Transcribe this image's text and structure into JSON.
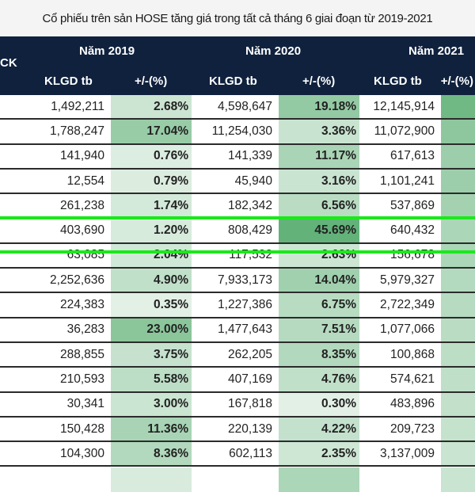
{
  "title": "Cổ phiếu trên sản HOSE tăng giá trong tất cả tháng 6 giai đoạn từ 2019-2021",
  "header": {
    "ck": "CK",
    "years": [
      "Năm 2019",
      "Năm 2020",
      "Năm 2021"
    ],
    "klgd": "KLGD tb",
    "pct": "+/-(%)"
  },
  "colors": {
    "header_bg": "#0f213d",
    "heat_low": "#eef6f0",
    "heat_high": "#5aae72",
    "highlight": "#1be81b"
  },
  "highlighted_row_index": 5,
  "rows": [
    {
      "klgd2019": "1,492,211",
      "pct2019": "2.68%",
      "klgd2020": "4,598,647",
      "pct2020": "19.18%",
      "klgd2021": "12,145,914",
      "level2021": 0.85
    },
    {
      "klgd2019": "1,788,247",
      "pct2019": "17.04%",
      "klgd2020": "11,254,030",
      "pct2020": "3.36%",
      "klgd2021": "11,072,900",
      "level2021": 0.65
    },
    {
      "klgd2019": "141,940",
      "pct2019": "0.76%",
      "klgd2020": "141,339",
      "pct2020": "11.17%",
      "klgd2021": "617,613",
      "level2021": 0.55
    },
    {
      "klgd2019": "12,554",
      "pct2019": "0.79%",
      "klgd2020": "45,940",
      "pct2020": "3.16%",
      "klgd2021": "1,101,241",
      "level2021": 0.55
    },
    {
      "klgd2019": "261,238",
      "pct2019": "1.74%",
      "klgd2020": "182,342",
      "pct2020": "6.56%",
      "klgd2021": "537,869",
      "level2021": 0.5
    },
    {
      "klgd2019": "403,690",
      "pct2019": "1.20%",
      "klgd2020": "808,429",
      "pct2020": "45.69%",
      "klgd2021": "640,432",
      "level2021": 0.45
    },
    {
      "klgd2019": "63,085",
      "pct2019": "2.04%",
      "klgd2020": "117,532",
      "pct2020": "2.63%",
      "klgd2021": "156,678",
      "level2021": 0.45
    },
    {
      "klgd2019": "2,252,636",
      "pct2019": "4.90%",
      "klgd2020": "7,933,173",
      "pct2020": "14.04%",
      "klgd2021": "5,979,327",
      "level2021": 0.4
    },
    {
      "klgd2019": "224,383",
      "pct2019": "0.35%",
      "klgd2020": "1,227,386",
      "pct2020": "6.75%",
      "klgd2021": "2,722,349",
      "level2021": 0.38
    },
    {
      "klgd2019": "36,283",
      "pct2019": "23.00%",
      "klgd2020": "1,477,643",
      "pct2020": "7.51%",
      "klgd2021": "1,077,066",
      "level2021": 0.36
    },
    {
      "klgd2019": "288,855",
      "pct2019": "3.75%",
      "klgd2020": "262,205",
      "pct2020": "8.35%",
      "klgd2021": "100,868",
      "level2021": 0.34
    },
    {
      "klgd2019": "210,593",
      "pct2019": "5.58%",
      "klgd2020": "407,169",
      "pct2020": "4.76%",
      "klgd2021": "574,621",
      "level2021": 0.32
    },
    {
      "klgd2019": "30,341",
      "pct2019": "3.00%",
      "klgd2020": "167,818",
      "pct2020": "0.30%",
      "klgd2021": "483,896",
      "level2021": 0.3
    },
    {
      "klgd2019": "150,428",
      "pct2019": "11.36%",
      "klgd2020": "220,139",
      "pct2020": "4.22%",
      "klgd2021": "209,723",
      "level2021": 0.28
    },
    {
      "klgd2019": "104,300",
      "pct2019": "8.36%",
      "klgd2020": "602,113",
      "pct2020": "2.35%",
      "klgd2021": "3,137,009",
      "level2021": 0.25
    }
  ]
}
